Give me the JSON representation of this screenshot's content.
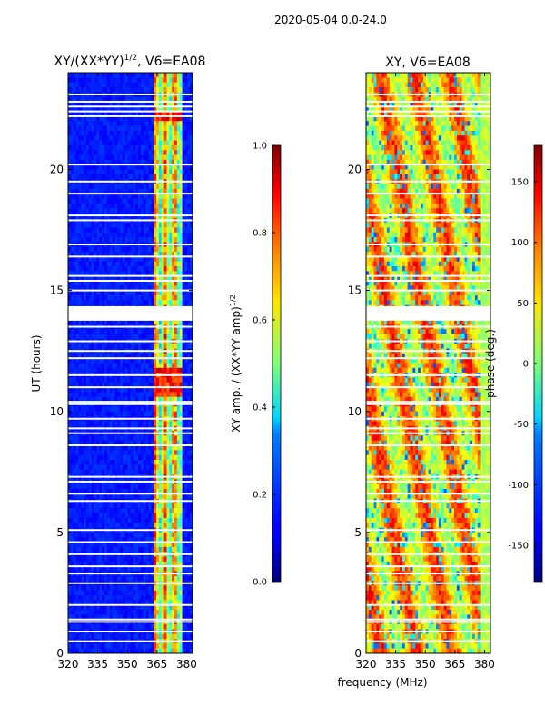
{
  "figure": {
    "suptitle": "2020-05-04 0.0-24.0",
    "xlabel": "frequency (MHz)"
  },
  "chart_data": [
    {
      "type": "heatmap",
      "title": "XY/(XX*YY)",
      "title_exponent": "1/2",
      "title_suffix": ", V6=EA08",
      "xlabel": "",
      "ylabel": "UT (hours)",
      "xlim": [
        320,
        383
      ],
      "ylim": [
        0,
        24
      ],
      "xticks": [
        "320",
        "335",
        "350",
        "365",
        "380"
      ],
      "xtick_values": [
        320,
        335,
        350,
        365,
        380
      ],
      "yticks": [
        "0",
        "5",
        "10",
        "15",
        "20"
      ],
      "ytick_values": [
        0,
        5,
        10,
        15,
        20
      ],
      "colormap": "jet",
      "colorbar": {
        "label": "XY amp. / (XX*YY amp)",
        "label_exponent": "1/2",
        "range": [
          0.0,
          1.0
        ],
        "ticks": [
          "0.0",
          "0.2",
          "0.4",
          "0.6",
          "0.8",
          "1.0"
        ],
        "tick_values": [
          0.0,
          0.2,
          0.4,
          0.6,
          0.8,
          1.0
        ]
      },
      "flagged_ut_hours": [
        0.5,
        0.9,
        1.3,
        1.4,
        2.0,
        2.9,
        3.3,
        3.6,
        4.1,
        4.6,
        5.1,
        6.3,
        6.6,
        7.1,
        7.3,
        8.6,
        9.1,
        9.3,
        9.7,
        10.3,
        10.4,
        11.0,
        11.5,
        12.2,
        12.5,
        12.9,
        13.5,
        15.0,
        15.4,
        15.6,
        16.4,
        16.9,
        17.9,
        18.1,
        19.0,
        19.5,
        20.2,
        22.2,
        22.4,
        22.6,
        22.8,
        23.1
      ],
      "flagged_ut_bands": [
        [
          13.75,
          14.35
        ]
      ],
      "high_amp_freq_range": [
        363,
        378
      ]
    },
    {
      "type": "heatmap",
      "title": "XY, V6=EA08",
      "xlabel": "",
      "ylabel": "",
      "xlim": [
        320,
        383
      ],
      "ylim": [
        0,
        24
      ],
      "xticks": [
        "320",
        "335",
        "350",
        "365",
        "380"
      ],
      "xtick_values": [
        320,
        335,
        350,
        365,
        380
      ],
      "yticks": [
        "0",
        "5",
        "10",
        "15",
        "20"
      ],
      "ytick_values": [
        0,
        5,
        10,
        15,
        20
      ],
      "colormap": "jet",
      "colorbar": {
        "label": "phase (deg.)",
        "range": [
          -180,
          180
        ],
        "ticks": [
          "-150",
          "-100",
          "-50",
          "0",
          "50",
          "100",
          "150"
        ],
        "tick_values": [
          -150,
          -100,
          -50,
          0,
          50,
          100,
          150
        ]
      },
      "flagged_ut_hours": [
        0.5,
        0.9,
        1.3,
        1.4,
        2.0,
        2.9,
        3.3,
        3.6,
        4.1,
        4.6,
        5.1,
        6.3,
        6.6,
        7.1,
        7.3,
        8.6,
        9.1,
        9.3,
        9.7,
        10.3,
        10.4,
        11.0,
        11.5,
        12.2,
        12.5,
        12.9,
        13.5,
        15.0,
        15.4,
        15.6,
        16.4,
        16.9,
        17.9,
        18.1,
        19.0,
        19.5,
        20.2,
        22.2,
        22.4,
        22.6,
        22.8,
        23.1
      ],
      "flagged_ut_bands": [
        [
          13.75,
          14.35
        ]
      ]
    }
  ]
}
